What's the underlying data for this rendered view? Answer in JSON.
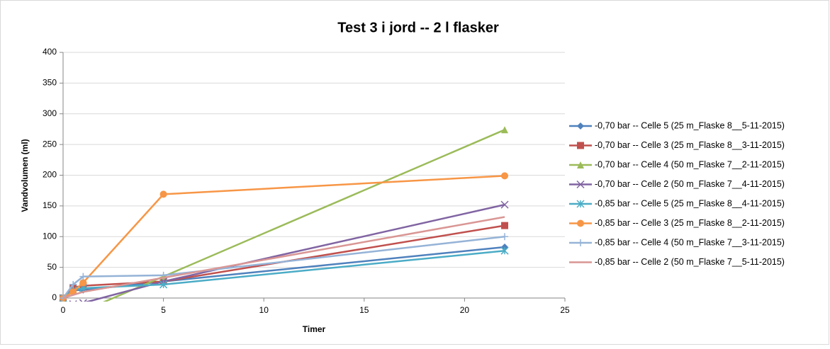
{
  "chart_data": {
    "type": "line",
    "title": "Test 3 i jord -- 2 l flasker",
    "xlabel": "Timer",
    "ylabel": "Vandvolumen (ml)",
    "x": [
      0,
      0.5,
      1,
      5,
      22
    ],
    "xlim": [
      0,
      25
    ],
    "xticks": [
      0,
      5,
      10,
      15,
      20,
      25
    ],
    "ylim": [
      0,
      400
    ],
    "yticks": [
      0,
      50,
      100,
      150,
      200,
      250,
      300,
      350,
      400
    ],
    "grid": true,
    "legend": "right",
    "series": [
      {
        "name": "-0,70 bar -- Celle 5 (25 m_Flaske 8__5-11-2015)",
        "color": "#4F81BD",
        "marker": "diamond",
        "values": [
          0,
          13,
          13,
          27,
          83
        ]
      },
      {
        "name": "-0,70 bar -- Celle 3 (25 m_Flaske 8__3-11-2015)",
        "color": "#C0504D",
        "marker": "square",
        "values": [
          0,
          17,
          20,
          27,
          118
        ]
      },
      {
        "name": "-0,70 bar -- Celle 4 (50 m_Flaske 7__2-11-2015)",
        "color": "#9BBB59",
        "marker": "triangle",
        "values": [
          -5,
          -15,
          -21,
          35,
          274
        ]
      },
      {
        "name": "-0,70 bar -- Celle 2 (50 m_Flaske 7__4-11-2015)",
        "color": "#8064A2",
        "marker": "x",
        "values": [
          -10,
          -10,
          -8,
          27,
          152
        ]
      },
      {
        "name": "-0,85 bar -- Celle 5 (25 m_Flaske 8__4-11-2015)",
        "color": "#4BACC6",
        "marker": "star",
        "values": [
          0,
          13,
          16,
          22,
          77
        ]
      },
      {
        "name": "-0,85 bar -- Celle 3 (25 m_Flaske 8__2-11-2015)",
        "color": "#F79646",
        "marker": "circle",
        "values": [
          0,
          10,
          25,
          169,
          199
        ]
      },
      {
        "name": "-0,85 bar -- Celle 4 (50 m_Flaske 7__3-11-2015)",
        "color": "#95B3D7",
        "marker": "plus",
        "values": [
          0,
          22,
          35,
          37,
          100
        ]
      },
      {
        "name": "-0,85 bar -- Celle 2 (50 m_Flaske 7__5-11-2015)",
        "color": "#D99694",
        "marker": "none",
        "values": [
          0,
          5,
          10,
          33,
          132
        ]
      }
    ]
  }
}
